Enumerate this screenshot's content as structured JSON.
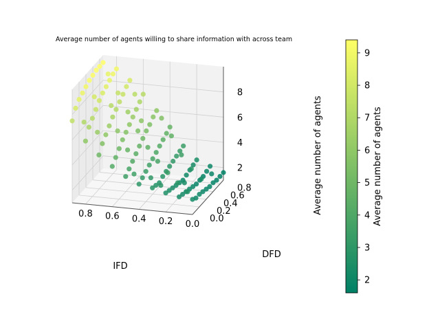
{
  "chart_data": {
    "type": "scatter",
    "subtype": "3d-scatter",
    "title": "Average number of agents willing to share information with across team",
    "xlabel": "IFD",
    "ylabel": "DFD",
    "zlabel": "Average number of agents",
    "xlim": [
      0.0,
      0.9
    ],
    "ylim": [
      0.0,
      0.9
    ],
    "zlim": [
      1.0,
      10.0
    ],
    "xticks": [
      "0.8",
      "0.6",
      "0.4",
      "0.2",
      "0.0"
    ],
    "yticks": [
      "0.8",
      "0.6",
      "0.4",
      "0.2",
      "0.0"
    ],
    "zticks": [
      "2",
      "4",
      "6",
      "8"
    ],
    "grid": true,
    "colormap": "summer",
    "color_min": "#008066",
    "color_max": "#ffff66",
    "colorbar": {
      "label": "Average number of agents",
      "min": 1.6,
      "max": 9.4,
      "ticks": [
        "2",
        "3",
        "4",
        "5",
        "6",
        "7",
        "8",
        "9"
      ]
    },
    "points": [
      {
        "x": 0.0,
        "y": 0.0,
        "z": 2.2
      },
      {
        "x": 0.1,
        "y": 0.0,
        "z": 2.3
      },
      {
        "x": 0.2,
        "y": 0.0,
        "z": 2.5
      },
      {
        "x": 0.3,
        "y": 0.0,
        "z": 2.8
      },
      {
        "x": 0.4,
        "y": 0.0,
        "z": 3.0
      },
      {
        "x": 0.5,
        "y": 0.0,
        "z": 3.5
      },
      {
        "x": 0.6,
        "y": 0.0,
        "z": 4.2
      },
      {
        "x": 0.7,
        "y": 0.0,
        "z": 5.0
      },
      {
        "x": 0.8,
        "y": 0.0,
        "z": 6.0
      },
      {
        "x": 0.9,
        "y": 0.0,
        "z": 7.5
      },
      {
        "x": 0.0,
        "y": 0.1,
        "z": 2.0
      },
      {
        "x": 0.1,
        "y": 0.1,
        "z": 2.2
      },
      {
        "x": 0.2,
        "y": 0.1,
        "z": 2.4
      },
      {
        "x": 0.3,
        "y": 0.1,
        "z": 2.7
      },
      {
        "x": 0.4,
        "y": 0.1,
        "z": 3.2
      },
      {
        "x": 0.5,
        "y": 0.1,
        "z": 3.8
      },
      {
        "x": 0.6,
        "y": 0.1,
        "z": 4.6
      },
      {
        "x": 0.7,
        "y": 0.1,
        "z": 5.6
      },
      {
        "x": 0.8,
        "y": 0.1,
        "z": 6.8
      },
      {
        "x": 0.9,
        "y": 0.1,
        "z": 8.2
      },
      {
        "x": 0.0,
        "y": 0.2,
        "z": 2.0
      },
      {
        "x": 0.1,
        "y": 0.2,
        "z": 2.1
      },
      {
        "x": 0.2,
        "y": 0.2,
        "z": 2.3
      },
      {
        "x": 0.3,
        "y": 0.2,
        "z": 2.6
      },
      {
        "x": 0.4,
        "y": 0.2,
        "z": 3.4
      },
      {
        "x": 0.5,
        "y": 0.2,
        "z": 4.1
      },
      {
        "x": 0.6,
        "y": 0.2,
        "z": 5.0
      },
      {
        "x": 0.7,
        "y": 0.2,
        "z": 6.0
      },
      {
        "x": 0.8,
        "y": 0.2,
        "z": 7.2
      },
      {
        "x": 0.9,
        "y": 0.2,
        "z": 8.6
      },
      {
        "x": 0.0,
        "y": 0.3,
        "z": 1.9
      },
      {
        "x": 0.1,
        "y": 0.3,
        "z": 2.0
      },
      {
        "x": 0.2,
        "y": 0.3,
        "z": 2.2
      },
      {
        "x": 0.3,
        "y": 0.3,
        "z": 2.8
      },
      {
        "x": 0.4,
        "y": 0.3,
        "z": 3.6
      },
      {
        "x": 0.5,
        "y": 0.3,
        "z": 4.4
      },
      {
        "x": 0.6,
        "y": 0.3,
        "z": 5.4
      },
      {
        "x": 0.7,
        "y": 0.3,
        "z": 6.4
      },
      {
        "x": 0.8,
        "y": 0.3,
        "z": 7.6
      },
      {
        "x": 0.9,
        "y": 0.3,
        "z": 8.8
      },
      {
        "x": 0.0,
        "y": 0.4,
        "z": 1.8
      },
      {
        "x": 0.1,
        "y": 0.4,
        "z": 1.9
      },
      {
        "x": 0.2,
        "y": 0.4,
        "z": 2.1
      },
      {
        "x": 0.3,
        "y": 0.4,
        "z": 2.9
      },
      {
        "x": 0.4,
        "y": 0.4,
        "z": 3.8
      },
      {
        "x": 0.5,
        "y": 0.4,
        "z": 4.7
      },
      {
        "x": 0.6,
        "y": 0.4,
        "z": 5.7
      },
      {
        "x": 0.7,
        "y": 0.4,
        "z": 6.8
      },
      {
        "x": 0.8,
        "y": 0.4,
        "z": 8.0
      },
      {
        "x": 0.9,
        "y": 0.4,
        "z": 9.0
      },
      {
        "x": 0.0,
        "y": 0.5,
        "z": 1.7
      },
      {
        "x": 0.1,
        "y": 0.5,
        "z": 1.8
      },
      {
        "x": 0.2,
        "y": 0.5,
        "z": 2.0
      },
      {
        "x": 0.3,
        "y": 0.5,
        "z": 3.0
      },
      {
        "x": 0.4,
        "y": 0.5,
        "z": 4.0
      },
      {
        "x": 0.5,
        "y": 0.5,
        "z": 5.0
      },
      {
        "x": 0.6,
        "y": 0.5,
        "z": 6.0
      },
      {
        "x": 0.7,
        "y": 0.5,
        "z": 7.1
      },
      {
        "x": 0.8,
        "y": 0.5,
        "z": 8.3
      },
      {
        "x": 0.9,
        "y": 0.5,
        "z": 9.2
      },
      {
        "x": 0.0,
        "y": 0.6,
        "z": 1.7
      },
      {
        "x": 0.1,
        "y": 0.6,
        "z": 1.8
      },
      {
        "x": 0.2,
        "y": 0.6,
        "z": 2.1
      },
      {
        "x": 0.3,
        "y": 0.6,
        "z": 3.1
      },
      {
        "x": 0.4,
        "y": 0.6,
        "z": 4.2
      },
      {
        "x": 0.5,
        "y": 0.6,
        "z": 5.3
      },
      {
        "x": 0.6,
        "y": 0.6,
        "z": 6.3
      },
      {
        "x": 0.7,
        "y": 0.6,
        "z": 7.4
      },
      {
        "x": 0.8,
        "y": 0.6,
        "z": 8.5
      },
      {
        "x": 0.9,
        "y": 0.6,
        "z": 9.3
      },
      {
        "x": 0.0,
        "y": 0.7,
        "z": 1.6
      },
      {
        "x": 0.1,
        "y": 0.7,
        "z": 1.8
      },
      {
        "x": 0.2,
        "y": 0.7,
        "z": 2.2
      },
      {
        "x": 0.3,
        "y": 0.7,
        "z": 3.2
      },
      {
        "x": 0.4,
        "y": 0.7,
        "z": 4.4
      },
      {
        "x": 0.5,
        "y": 0.7,
        "z": 5.5
      },
      {
        "x": 0.6,
        "y": 0.7,
        "z": 6.6
      },
      {
        "x": 0.7,
        "y": 0.7,
        "z": 7.7
      },
      {
        "x": 0.8,
        "y": 0.7,
        "z": 8.7
      },
      {
        "x": 0.9,
        "y": 0.7,
        "z": 9.4
      },
      {
        "x": 0.0,
        "y": 0.8,
        "z": 1.6
      },
      {
        "x": 0.1,
        "y": 0.8,
        "z": 1.9
      },
      {
        "x": 0.2,
        "y": 0.8,
        "z": 2.3
      },
      {
        "x": 0.3,
        "y": 0.8,
        "z": 3.3
      },
      {
        "x": 0.4,
        "y": 0.8,
        "z": 4.6
      },
      {
        "x": 0.5,
        "y": 0.8,
        "z": 5.8
      },
      {
        "x": 0.6,
        "y": 0.8,
        "z": 6.9
      },
      {
        "x": 0.7,
        "y": 0.8,
        "z": 8.0
      },
      {
        "x": 0.8,
        "y": 0.8,
        "z": 8.9
      },
      {
        "x": 0.9,
        "y": 0.8,
        "z": 9.4
      },
      {
        "x": 0.0,
        "y": 0.9,
        "z": 1.6
      },
      {
        "x": 0.1,
        "y": 0.9,
        "z": 2.0
      },
      {
        "x": 0.2,
        "y": 0.9,
        "z": 2.4
      },
      {
        "x": 0.3,
        "y": 0.9,
        "z": 3.4
      },
      {
        "x": 0.4,
        "y": 0.9,
        "z": 4.8
      },
      {
        "x": 0.5,
        "y": 0.9,
        "z": 6.0
      },
      {
        "x": 0.6,
        "y": 0.9,
        "z": 7.2
      },
      {
        "x": 0.7,
        "y": 0.9,
        "z": 8.2
      },
      {
        "x": 0.8,
        "y": 0.9,
        "z": 9.0
      },
      {
        "x": 0.9,
        "y": 0.9,
        "z": 9.4
      },
      {
        "x": 0.05,
        "y": 0.05,
        "z": 2.6
      },
      {
        "x": 0.15,
        "y": 0.15,
        "z": 2.9
      },
      {
        "x": 0.25,
        "y": 0.25,
        "z": 3.3
      },
      {
        "x": 0.35,
        "y": 0.35,
        "z": 3.8
      },
      {
        "x": 0.45,
        "y": 0.45,
        "z": 4.5
      },
      {
        "x": 0.55,
        "y": 0.55,
        "z": 5.4
      },
      {
        "x": 0.65,
        "y": 0.65,
        "z": 6.5
      },
      {
        "x": 0.75,
        "y": 0.75,
        "z": 7.6
      },
      {
        "x": 0.85,
        "y": 0.85,
        "z": 8.7
      },
      {
        "x": 0.05,
        "y": 0.45,
        "z": 2.4
      },
      {
        "x": 0.15,
        "y": 0.55,
        "z": 2.8
      },
      {
        "x": 0.25,
        "y": 0.65,
        "z": 3.5
      },
      {
        "x": 0.35,
        "y": 0.75,
        "z": 4.6
      },
      {
        "x": 0.45,
        "y": 0.85,
        "z": 5.6
      },
      {
        "x": 0.55,
        "y": 0.25,
        "z": 4.8
      },
      {
        "x": 0.65,
        "y": 0.35,
        "z": 5.9
      },
      {
        "x": 0.75,
        "y": 0.15,
        "z": 6.3
      },
      {
        "x": 0.85,
        "y": 0.45,
        "z": 8.1
      },
      {
        "x": 0.45,
        "y": 0.05,
        "z": 3.6
      },
      {
        "x": 0.35,
        "y": 0.15,
        "z": 3.1
      },
      {
        "x": 0.25,
        "y": 0.05,
        "z": 2.9
      },
      {
        "x": 0.55,
        "y": 0.65,
        "z": 5.9
      },
      {
        "x": 0.65,
        "y": 0.85,
        "z": 7.3
      },
      {
        "x": 0.75,
        "y": 0.55,
        "z": 7.2
      },
      {
        "x": 0.15,
        "y": 0.35,
        "z": 2.3
      },
      {
        "x": 0.05,
        "y": 0.75,
        "z": 1.9
      },
      {
        "x": 0.85,
        "y": 0.15,
        "z": 7.0
      }
    ]
  }
}
